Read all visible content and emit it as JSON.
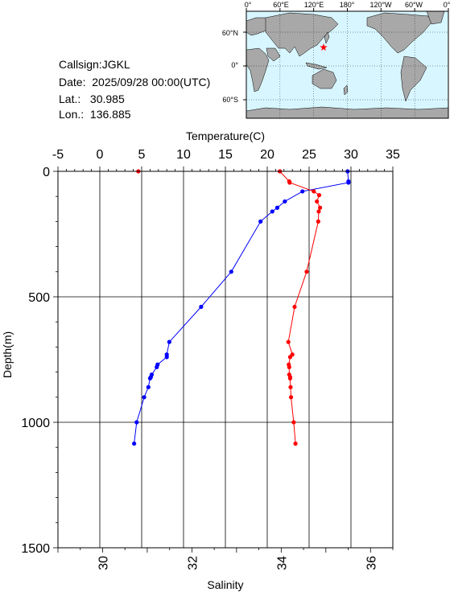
{
  "station": {
    "callsign": "Callsign:JGKL",
    "date": "Date:  2025/09/28 00:00(UTC)",
    "lat": "Lat.:   30.985",
    "lon": "Lon.:  136.885"
  },
  "map": {
    "top_labels": [
      "0°",
      "60°E",
      "120°E",
      "180°",
      "120°W",
      "60°W",
      "0°"
    ],
    "right_labels": [
      "60°N",
      "0°",
      "60°S"
    ],
    "ocean_color": "#d8f6ff",
    "land_color": "#a8a8a8",
    "marker_color": "#ff0000",
    "marker": "star-icon"
  },
  "chart_data": {
    "type": "line",
    "y_axis": {
      "label": "Depth(m)",
      "range": [
        0,
        1500
      ],
      "inverted": true,
      "ticks": [
        "0",
        "500",
        "1000",
        "1500"
      ]
    },
    "top_axis": {
      "label": "Temperature(C)",
      "range": [
        -5,
        35
      ],
      "ticks": [
        "-5",
        "0",
        "5",
        "10",
        "15",
        "20",
        "25",
        "30",
        "35"
      ]
    },
    "bottom_axis": {
      "label": "Salinity",
      "range": [
        29,
        36.5
      ],
      "ticks": [
        "30",
        "32",
        "34",
        "36"
      ]
    },
    "grid": true,
    "series": [
      {
        "name": "Temperature(C)",
        "color": "#0000ff",
        "axis": "top",
        "points": [
          [
            29.6,
            0
          ],
          [
            29.7,
            40
          ],
          [
            29.7,
            45
          ],
          [
            24.2,
            80
          ],
          [
            22.1,
            120
          ],
          [
            21.2,
            145
          ],
          [
            20.6,
            160
          ],
          [
            19.2,
            200
          ],
          [
            15.7,
            400
          ],
          [
            12.1,
            540
          ],
          [
            8.3,
            680
          ],
          [
            8.0,
            730
          ],
          [
            8.0,
            740
          ],
          [
            6.9,
            770
          ],
          [
            6.8,
            780
          ],
          [
            6.2,
            810
          ],
          [
            6.1,
            820
          ],
          [
            6.0,
            825
          ],
          [
            5.8,
            860
          ],
          [
            5.3,
            900
          ],
          [
            4.4,
            1000
          ],
          [
            4.1,
            1085
          ]
        ]
      },
      {
        "name": "Salinity",
        "color": "#ff0000",
        "axis": "bottom",
        "points": [
          [
            30.8,
            0
          ],
          [
            33.97,
            0
          ],
          [
            34.18,
            40
          ],
          [
            34.19,
            45
          ],
          [
            34.73,
            80
          ],
          [
            34.85,
            95
          ],
          [
            34.8,
            120
          ],
          [
            34.87,
            145
          ],
          [
            34.84,
            160
          ],
          [
            34.83,
            200
          ],
          [
            34.57,
            400
          ],
          [
            34.3,
            540
          ],
          [
            34.16,
            680
          ],
          [
            34.25,
            730
          ],
          [
            34.2,
            740
          ],
          [
            34.17,
            770
          ],
          [
            34.18,
            780
          ],
          [
            34.18,
            810
          ],
          [
            34.2,
            820
          ],
          [
            34.2,
            825
          ],
          [
            34.21,
            860
          ],
          [
            34.22,
            900
          ],
          [
            34.28,
            1000
          ],
          [
            34.32,
            1085
          ]
        ]
      }
    ]
  }
}
